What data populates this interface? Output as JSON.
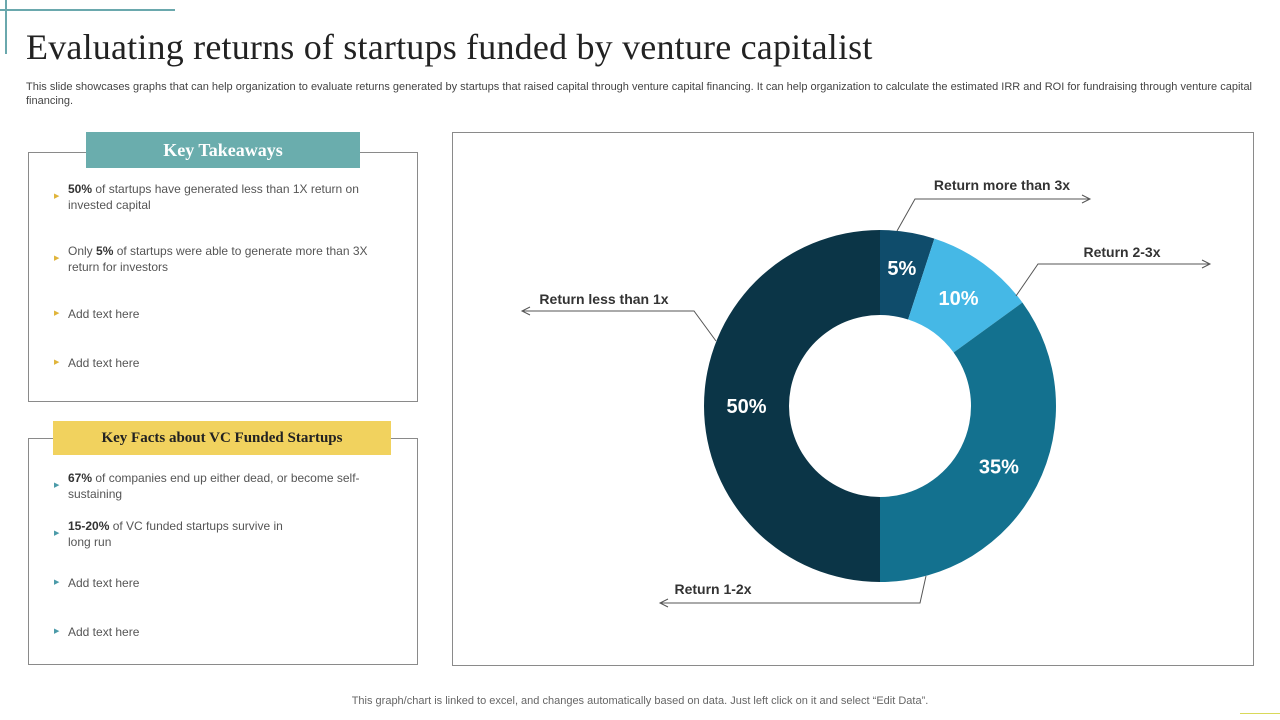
{
  "page": {
    "title": "Evaluating returns of startups funded by venture capitalist",
    "subtitle": "This slide showcases graphs that can help organization to evaluate returns generated by startups that raised capital through venture capital financing. It can help organization to calculate the estimated IRR and ROI for fundraising through venture capital financing.",
    "footer": "This graph/chart is linked to excel, and changes automatically based on data. Just left click on it and select “Edit Data”."
  },
  "takeaways": {
    "header": "Key Takeaways",
    "items": [
      {
        "bold": "50%",
        "text": " of startups have generated less than 1X return on invested capital"
      },
      {
        "prefix": "Only ",
        "bold": "5%",
        "text": " of startups were able to generate more than 3X return for investors"
      },
      {
        "text": "Add text here"
      },
      {
        "text": "Add text here"
      }
    ]
  },
  "facts": {
    "header": "Key Facts about VC Funded Startups",
    "items": [
      {
        "bold": "67%",
        "text": " of companies end up either dead, or become self-sustaining"
      },
      {
        "bold": "15-20%",
        "text": " of VC funded startups survive in long run"
      },
      {
        "text": "Add text here"
      },
      {
        "text": "Add text here"
      }
    ]
  },
  "colors": {
    "teal_header": "#6aadad",
    "yellow_header": "#f1d25e"
  },
  "chart_data": {
    "type": "pie",
    "donut": true,
    "categories": [
      "Return more than 3x",
      "Return 2-3x",
      "Return 1-2x",
      "Return less than 1x"
    ],
    "values": [
      5,
      10,
      35,
      50
    ],
    "labels": [
      "5%",
      "10%",
      "35%",
      "50%"
    ],
    "colors": [
      "#0f4c6b",
      "#45b8e6",
      "#13718f",
      "#0b3547"
    ],
    "legend": "callouts"
  }
}
